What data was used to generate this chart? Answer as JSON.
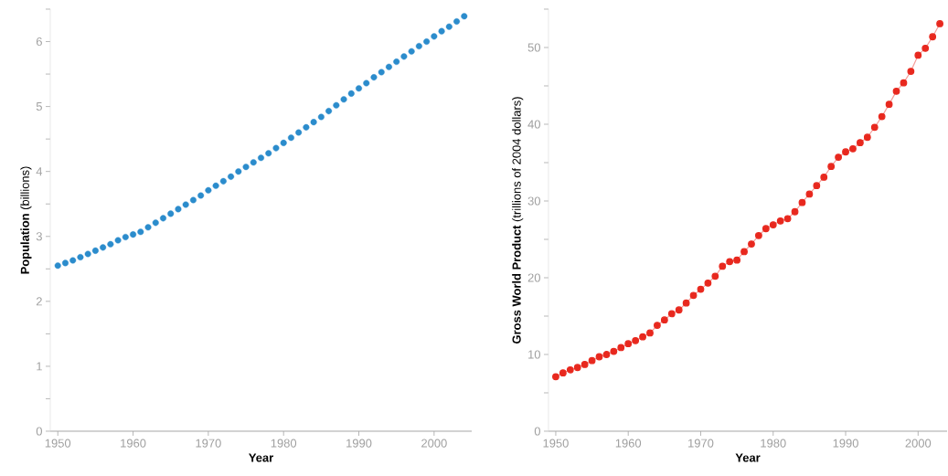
{
  "chart_data": [
    {
      "type": "scatter",
      "xlabel": "Year",
      "ylabel": "**Population** (billions)",
      "marker": "circle",
      "grid": false,
      "x": [
        1950,
        1951,
        1952,
        1953,
        1954,
        1955,
        1956,
        1957,
        1958,
        1959,
        1960,
        1961,
        1962,
        1963,
        1964,
        1965,
        1966,
        1967,
        1968,
        1969,
        1970,
        1971,
        1972,
        1973,
        1974,
        1975,
        1976,
        1977,
        1978,
        1979,
        1980,
        1981,
        1982,
        1983,
        1984,
        1985,
        1986,
        1987,
        1988,
        1989,
        1990,
        1991,
        1992,
        1993,
        1994,
        1995,
        1996,
        1997,
        1998,
        1999,
        2000,
        2001,
        2002,
        2003,
        2004
      ],
      "series": [
        {
          "color": "#2b8ccc",
          "values": [
            2.55,
            2.59,
            2.63,
            2.68,
            2.73,
            2.78,
            2.83,
            2.88,
            2.94,
            2.99,
            3.03,
            3.07,
            3.14,
            3.21,
            3.28,
            3.35,
            3.42,
            3.49,
            3.56,
            3.63,
            3.71,
            3.78,
            3.85,
            3.92,
            4.0,
            4.07,
            4.14,
            4.21,
            4.28,
            4.36,
            4.44,
            4.52,
            4.6,
            4.68,
            4.76,
            4.84,
            4.93,
            5.02,
            5.11,
            5.2,
            5.28,
            5.36,
            5.45,
            5.53,
            5.61,
            5.69,
            5.77,
            5.85,
            5.93,
            6.0,
            6.08,
            6.16,
            6.23,
            6.31,
            6.39
          ]
        }
      ],
      "xlim": [
        1949,
        2005
      ],
      "ylim": [
        0,
        6.5
      ],
      "xticks": [
        1950,
        1960,
        1970,
        1980,
        1990,
        2000
      ],
      "yticks": [
        0,
        {
          "value": 0.5,
          "label": null
        },
        1,
        {
          "value": 1.5,
          "label": null
        },
        2,
        {
          "value": 2.5,
          "label": null
        },
        3,
        {
          "value": 3.5,
          "label": null
        },
        4,
        {
          "value": 4.5,
          "label": null
        },
        5,
        {
          "value": 5.5,
          "label": null
        },
        6,
        {
          "value": 6.5,
          "label": null
        }
      ]
    },
    {
      "type": "line",
      "xlabel": "Year",
      "ylabel": "**Gross World Product** (trillions of 2004 dollars)",
      "marker": "circle",
      "line_style": "solid",
      "grid": false,
      "x": [
        1950,
        1951,
        1952,
        1953,
        1954,
        1955,
        1956,
        1957,
        1958,
        1959,
        1960,
        1961,
        1962,
        1963,
        1964,
        1965,
        1966,
        1967,
        1968,
        1969,
        1970,
        1971,
        1972,
        1973,
        1974,
        1975,
        1976,
        1977,
        1978,
        1979,
        1980,
        1981,
        1982,
        1983,
        1984,
        1985,
        1986,
        1987,
        1988,
        1989,
        1990,
        1991,
        1992,
        1993,
        1994,
        1995,
        1996,
        1997,
        1998,
        1999,
        2000,
        2001,
        2002,
        2003
      ],
      "series": [
        {
          "color": "#e8281e",
          "values": [
            7.1,
            7.6,
            8.0,
            8.3,
            8.7,
            9.2,
            9.7,
            10.0,
            10.4,
            10.9,
            11.4,
            11.8,
            12.3,
            12.8,
            13.8,
            14.5,
            15.3,
            15.8,
            16.7,
            17.7,
            18.5,
            19.3,
            20.2,
            21.5,
            22.1,
            22.3,
            23.4,
            24.4,
            25.5,
            26.4,
            26.9,
            27.4,
            27.7,
            28.6,
            29.8,
            30.9,
            32.0,
            33.1,
            34.5,
            35.7,
            36.4,
            36.8,
            37.6,
            38.3,
            39.6,
            41.0,
            42.6,
            44.3,
            45.4,
            46.9,
            49.0,
            49.9,
            51.4,
            53.1
          ]
        }
      ],
      "xlim": [
        1949,
        2004
      ],
      "ylim": [
        0,
        55
      ],
      "xticks": [
        1950,
        1960,
        1970,
        1980,
        1990,
        2000
      ],
      "yticks": [
        0,
        {
          "value": 5,
          "label": null
        },
        10,
        {
          "value": 15,
          "label": null
        },
        20,
        {
          "value": 25,
          "label": null
        },
        30,
        {
          "value": 35,
          "label": null
        },
        40,
        {
          "value": 45,
          "label": null
        },
        50,
        {
          "value": 55,
          "label": null
        }
      ]
    }
  ]
}
